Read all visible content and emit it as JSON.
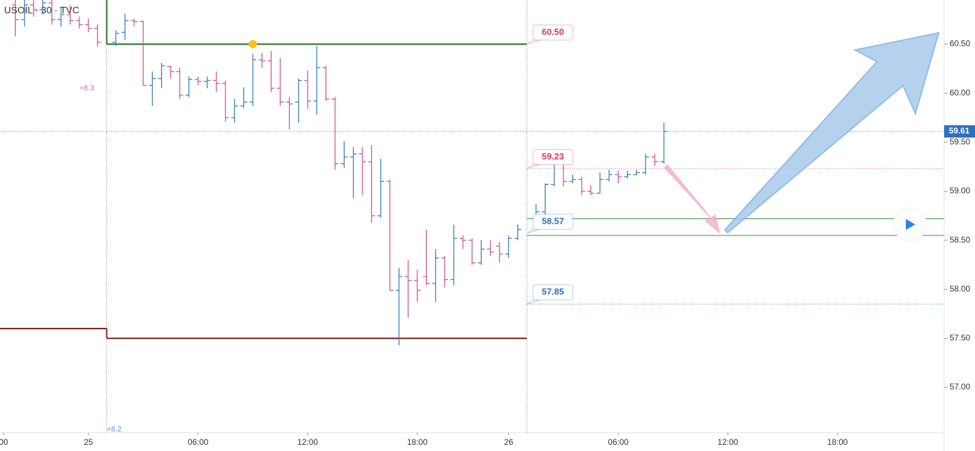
{
  "chart_data": {
    "type": "ohlc",
    "title": "USOIL · 30 · TVC",
    "x": [
      -4,
      -3.5,
      -3,
      -2.5,
      -2,
      -1.5,
      -1,
      -0.5,
      0,
      0.5,
      1.5,
      2,
      2.5,
      3,
      3.5,
      4,
      4.5,
      5,
      5.5,
      6,
      6.5,
      7,
      7.5,
      8,
      8.5,
      9,
      9.5,
      10,
      10.5,
      11,
      11.5,
      12,
      12.5,
      13,
      13.5,
      14,
      14.5,
      15,
      15.5,
      16,
      16.5,
      17,
      17.5,
      18,
      18.5,
      19,
      19.5,
      20,
      20.5,
      21,
      21.5,
      22,
      22.5,
      23,
      23.5,
      24.5,
      25,
      25.5,
      26,
      26.5,
      27,
      27.5,
      28,
      28.5,
      29,
      29.5,
      30,
      30.5,
      31,
      31.5
    ],
    "open": [
      60.9,
      60.75,
      60.9,
      60.85,
      60.92,
      60.75,
      60.8,
      60.74,
      60.7,
      60.66,
      60.52,
      60.62,
      60.74,
      60.73,
      60.08,
      60.15,
      60.27,
      60.22,
      59.98,
      60.14,
      60.12,
      60.13,
      60.1,
      59.75,
      59.87,
      59.91,
      60.34,
      60.33,
      60.05,
      59.91,
      59.91,
      60.13,
      59.92,
      60.26,
      59.94,
      59.28,
      59.35,
      59.38,
      59.3,
      58.75,
      59.1,
      57.99,
      58.13,
      58.09,
      58.13,
      58.06,
      58.32,
      58.1,
      58.52,
      58.5,
      58.27,
      58.41,
      58.44,
      58.36,
      58.52,
      58.72,
      58.79,
      59.07,
      59.29,
      59.1,
      59.12,
      59,
      58.98,
      59.12,
      59.17,
      59.15,
      59.17,
      59.19,
      59.35,
      59.3
    ],
    "high": [
      61.02,
      60.95,
      61.05,
      61,
      61,
      60.88,
      60.9,
      60.78,
      60.76,
      60.7,
      60.64,
      60.81,
      60.76,
      60.74,
      60.22,
      60.31,
      60.28,
      60.26,
      60.17,
      60.17,
      60.17,
      60.22,
      60.13,
      59.94,
      60.06,
      60.4,
      60.41,
      60.43,
      60.36,
      59.96,
      60.15,
      60.23,
      60.48,
      60.28,
      59.96,
      59.51,
      59.45,
      59.45,
      59.47,
      59.33,
      59.12,
      58.22,
      58.3,
      58.2,
      58.61,
      58.41,
      58.34,
      58.66,
      58.55,
      58.52,
      58.5,
      58.5,
      58.48,
      58.55,
      58.66,
      58.87,
      59.08,
      59.31,
      59.31,
      59.17,
      59.15,
      59.06,
      59.19,
      59.22,
      59.21,
      59.21,
      59.22,
      59.38,
      59.38,
      59.7
    ],
    "low": [
      60.58,
      60.68,
      60.78,
      60.8,
      60.7,
      60.68,
      60.7,
      60.66,
      60.62,
      60.48,
      60.48,
      60.54,
      60.68,
      60.08,
      59.87,
      60.05,
      60.15,
      59.94,
      59.96,
      60.08,
      60.05,
      60.01,
      59.71,
      59.7,
      59.85,
      59.87,
      60.26,
      60.01,
      59.87,
      59.63,
      59.7,
      59.84,
      59.78,
      59.92,
      59.22,
      59.24,
      58.93,
      58.96,
      58.68,
      58.73,
      57.99,
      57.43,
      57.71,
      57.87,
      58.04,
      57.87,
      58.02,
      58.04,
      58.41,
      58.25,
      58.25,
      58.34,
      58.27,
      58.32,
      58.5,
      58.65,
      58.68,
      59.05,
      59.05,
      59.08,
      58.96,
      58.96,
      58.98,
      59.1,
      59.08,
      59.13,
      59.16,
      59.17,
      59.26,
      59.28
    ],
    "close": [
      60.75,
      60.9,
      60.85,
      60.92,
      60.75,
      60.8,
      60.74,
      60.7,
      60.66,
      60.52,
      60.61,
      60.74,
      60.73,
      60.08,
      60.15,
      60.28,
      60.22,
      59.98,
      60.14,
      60.12,
      60.13,
      60.1,
      59.75,
      59.87,
      59.91,
      60.34,
      60.33,
      60.05,
      59.91,
      59.89,
      60.13,
      59.92,
      60.26,
      59.94,
      59.28,
      59.35,
      59.38,
      59.3,
      58.75,
      59.1,
      57.99,
      58.13,
      58.09,
      57.99,
      58.06,
      58.32,
      58.1,
      58.52,
      58.5,
      58.27,
      58.41,
      58.38,
      58.36,
      58.52,
      58.61,
      58.79,
      59.07,
      59.29,
      59.1,
      59.12,
      59,
      58.98,
      59.12,
      59.17,
      59.15,
      59.17,
      59.19,
      59.35,
      59.3,
      59.61
    ],
    "up_color": "#3d7fc1",
    "down_color": "#d0578f",
    "xlim": [
      -4.84,
      46.84
    ],
    "ylim": [
      56.54,
      60.95
    ],
    "xticks": [
      {
        "value": -4.65,
        "label": "00"
      },
      {
        "value": 0,
        "label": "25"
      },
      {
        "value": 6,
        "label": "06:00"
      },
      {
        "value": 12,
        "label": "12:00"
      },
      {
        "value": 18,
        "label": "18:00"
      },
      {
        "value": 23,
        "label": "26"
      },
      {
        "value": 29,
        "label": "06:00"
      },
      {
        "value": 35,
        "label": "12:00"
      },
      {
        "value": 41,
        "label": "18:00"
      }
    ],
    "yticks": [
      {
        "value": 57,
        "label": "57.00"
      },
      {
        "value": 57.5,
        "label": "57.50"
      },
      {
        "value": 58,
        "label": "58.00"
      },
      {
        "value": 58.5,
        "label": "58.50"
      },
      {
        "value": 59,
        "label": "59.00"
      },
      {
        "value": 59.5,
        "label": "59.50"
      },
      {
        "value": 60,
        "label": "60.00"
      },
      {
        "value": 60.5,
        "label": "60.50"
      }
    ],
    "last_price": {
      "value": 59.61,
      "label": "59.61",
      "color": "#2f6fc0"
    },
    "lines": [
      {
        "x": [
          1,
          1
        ],
        "y": [
          60.95,
          60.5
        ],
        "color": "#1e6b1e",
        "width": 2,
        "dotted": false
      },
      {
        "x": [
          1,
          24
        ],
        "y": [
          60.5,
          60.5
        ],
        "color": "#1e6b1e",
        "width": 2,
        "dotted": false
      },
      {
        "x": [
          -4.84,
          1
        ],
        "y": [
          57.6,
          57.6
        ],
        "color": "#7a1515",
        "width": 2,
        "dotted": false
      },
      {
        "x": [
          1,
          1
        ],
        "y": [
          57.6,
          57.5
        ],
        "color": "#7a1515",
        "width": 2,
        "dotted": false
      },
      {
        "x": [
          1,
          24
        ],
        "y": [
          57.5,
          57.5
        ],
        "color": "#7a1515",
        "width": 2,
        "dotted": false
      },
      {
        "x": [
          24,
          46.84
        ],
        "y": [
          59.23,
          59.23
        ],
        "color": "#e07aa0",
        "width": 1,
        "dotted": true
      },
      {
        "x": [
          24,
          46.84
        ],
        "y": [
          58.72,
          58.72
        ],
        "color": "#3c8a3c",
        "width": 1,
        "dotted": false
      },
      {
        "x": [
          24,
          46.84
        ],
        "y": [
          58.55,
          58.55
        ],
        "color": "#3c8a3c",
        "width": 1,
        "dotted": false
      },
      {
        "x": [
          24,
          46.84
        ],
        "y": [
          57.85,
          57.85
        ],
        "color": "#3d7fc1",
        "width": 1,
        "dotted": true
      },
      {
        "x": [
          -4.84,
          46.84
        ],
        "y": [
          59.61,
          59.61
        ],
        "color": "#3d7fc1",
        "width": 1,
        "dotted": true
      },
      {
        "x": [
          1,
          1
        ],
        "y": [
          56.54,
          60.95
        ],
        "color": "#777",
        "width": 1,
        "dotted": true
      },
      {
        "x": [
          24,
          24
        ],
        "y": [
          56.54,
          60.95
        ],
        "color": "#777",
        "width": 1,
        "dotted": true
      }
    ],
    "callouts": [
      {
        "value": 60.5,
        "label": "60.50",
        "color": "#d63a66"
      },
      {
        "value": 59.23,
        "label": "59.23",
        "color": "#d63a66"
      },
      {
        "value": 58.57,
        "label": "58.57",
        "color": "#2f6fc0"
      },
      {
        "value": 57.85,
        "label": "57.85",
        "color": "#2f6fc0"
      }
    ],
    "marker": {
      "x": 9,
      "y": 60.5,
      "color": "#f5c518"
    },
    "notes": [
      {
        "text": "+8.3",
        "x": -0.5,
        "y": 60.05,
        "color": "#c46ec9"
      },
      {
        "text": "+8.2",
        "x": 1,
        "y": 56.57,
        "color": "#6d8fd0"
      }
    ]
  }
}
